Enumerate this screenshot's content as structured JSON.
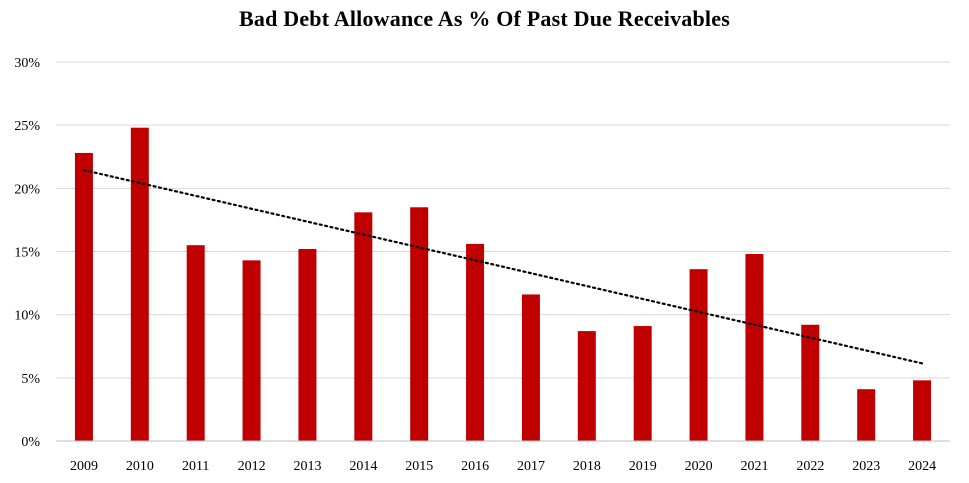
{
  "chart_data": {
    "type": "bar",
    "title": "Bad Debt Allowance As % Of Past Due Receivables",
    "xlabel": "",
    "ylabel": "",
    "categories": [
      "2009",
      "2010",
      "2011",
      "2012",
      "2013",
      "2014",
      "2015",
      "2016",
      "2017",
      "2018",
      "2019",
      "2020",
      "2021",
      "2022",
      "2023",
      "2024"
    ],
    "values": [
      22.8,
      24.8,
      15.5,
      14.3,
      15.2,
      18.1,
      18.5,
      15.6,
      11.6,
      8.7,
      9.1,
      13.6,
      14.8,
      9.2,
      4.1,
      4.8
    ],
    "ylim": [
      0,
      30
    ],
    "yticks": [
      0,
      5,
      10,
      15,
      20,
      25,
      30
    ],
    "ytick_labels": [
      "0%",
      "5%",
      "10%",
      "15%",
      "20%",
      "25%",
      "30%"
    ],
    "grid": true,
    "trendline": {
      "type": "linear",
      "style": "dotted",
      "color": "#000000"
    },
    "colors": {
      "bar": "#C00000",
      "grid": "#D9D9D9",
      "axis": "#BFBFBF"
    }
  }
}
